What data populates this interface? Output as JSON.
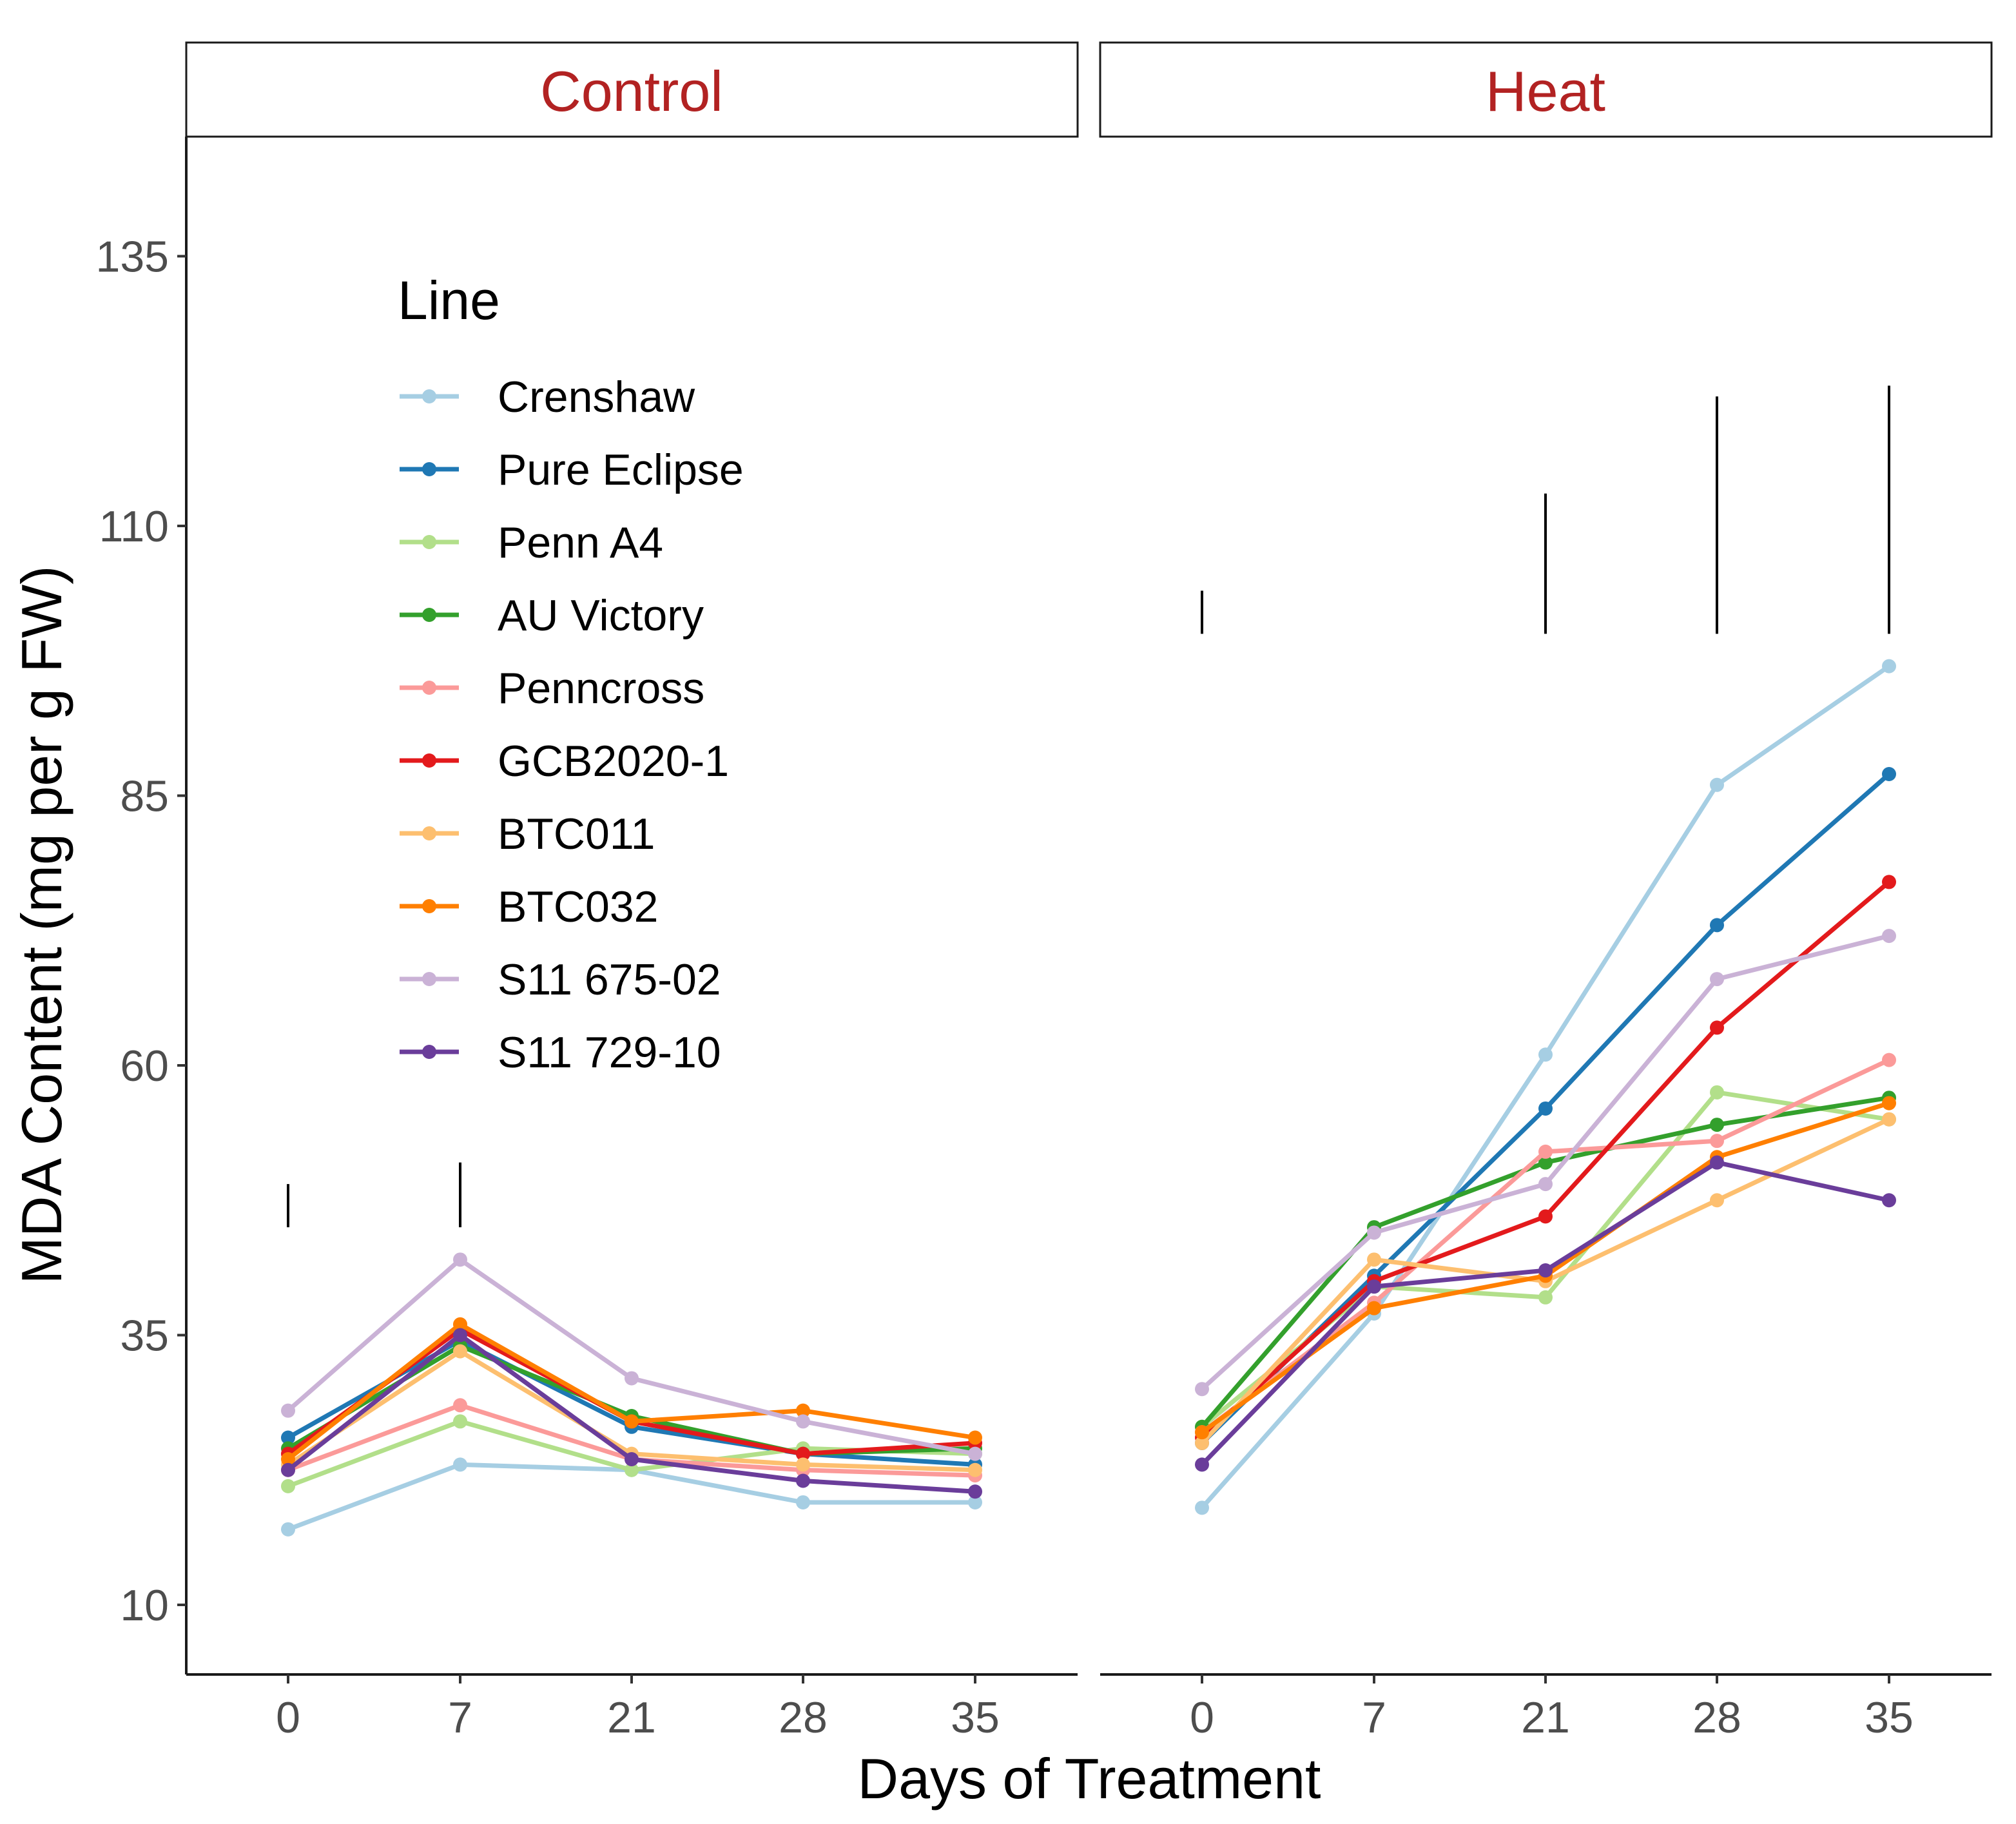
{
  "chart_data": {
    "type": "line",
    "facets": [
      "Control",
      "Heat"
    ],
    "categories": [
      "0",
      "7",
      "21",
      "28",
      "35"
    ],
    "xlabel": "Days of Treatment",
    "ylabel": "MDA Content (mg per g FW)",
    "ylim": [
      4,
      147
    ],
    "yticks": [
      10,
      35,
      60,
      85,
      110,
      135
    ],
    "legend_title": "Line",
    "legend_position": "inside top-left",
    "grid": false,
    "series": [
      {
        "name": "Crenshaw",
        "color": "#a6cee3",
        "values": {
          "Control": [
            17,
            23,
            22.5,
            19.5,
            19.5
          ],
          "Heat": [
            19,
            37,
            61,
            86,
            97
          ]
        }
      },
      {
        "name": "Pure Eclipse",
        "color": "#1f78b4",
        "values": {
          "Control": [
            25.5,
            34.5,
            26.5,
            24,
            23
          ],
          "Heat": [
            25,
            40.5,
            56,
            73,
            87
          ]
        }
      },
      {
        "name": "Penn A4",
        "color": "#b2df8a",
        "values": {
          "Control": [
            21,
            27,
            22.5,
            24.5,
            24
          ],
          "Heat": [
            26.5,
            39.5,
            38.5,
            57.5,
            55
          ]
        }
      },
      {
        "name": "AU Victory",
        "color": "#33a02c",
        "values": {
          "Control": [
            24.5,
            34,
            27.5,
            24,
            24.5
          ],
          "Heat": [
            26.5,
            45,
            51,
            54.5,
            57
          ]
        }
      },
      {
        "name": "Penncross",
        "color": "#fb9a99",
        "values": {
          "Control": [
            22.5,
            28.5,
            23.5,
            22.5,
            22
          ],
          "Heat": [
            26,
            38,
            52,
            53,
            60.5
          ]
        }
      },
      {
        "name": "GCB2020-1",
        "color": "#e31a1c",
        "values": {
          "Control": [
            24,
            35.5,
            27,
            24,
            25
          ],
          "Heat": [
            25.5,
            40,
            46,
            63.5,
            77
          ]
        }
      },
      {
        "name": "BTC011",
        "color": "#fdbf6f",
        "values": {
          "Control": [
            23,
            33.5,
            24,
            23,
            22.5
          ],
          "Heat": [
            25,
            42,
            40,
            47.5,
            55
          ]
        }
      },
      {
        "name": "BTC032",
        "color": "#ff7f00",
        "values": {
          "Control": [
            23.5,
            36,
            27,
            28,
            25.5
          ],
          "Heat": [
            26,
            37.5,
            40.5,
            51.5,
            56.5
          ]
        }
      },
      {
        "name": "S11 675-02",
        "color": "#cab2d6",
        "values": {
          "Control": [
            28,
            42,
            31,
            27,
            24
          ],
          "Heat": [
            30,
            44.5,
            49,
            68,
            72
          ]
        }
      },
      {
        "name": "S11 729-10",
        "color": "#6a3d9a",
        "values": {
          "Control": [
            22.5,
            35,
            23.5,
            21.5,
            20.5
          ],
          "Heat": [
            23,
            39.5,
            41,
            51,
            47.5
          ]
        }
      }
    ],
    "significance_bars": {
      "Control": [
        {
          "day": "0",
          "top": 49,
          "bottom": 45
        },
        {
          "day": "7",
          "top": 51,
          "bottom": 45
        }
      ],
      "Heat": [
        {
          "day": "0",
          "top": 104,
          "bottom": 100
        },
        {
          "day": "21",
          "top": 113,
          "bottom": 100
        },
        {
          "day": "28",
          "top": 122,
          "bottom": 100
        },
        {
          "day": "35",
          "top": 123,
          "bottom": 100
        }
      ]
    }
  }
}
